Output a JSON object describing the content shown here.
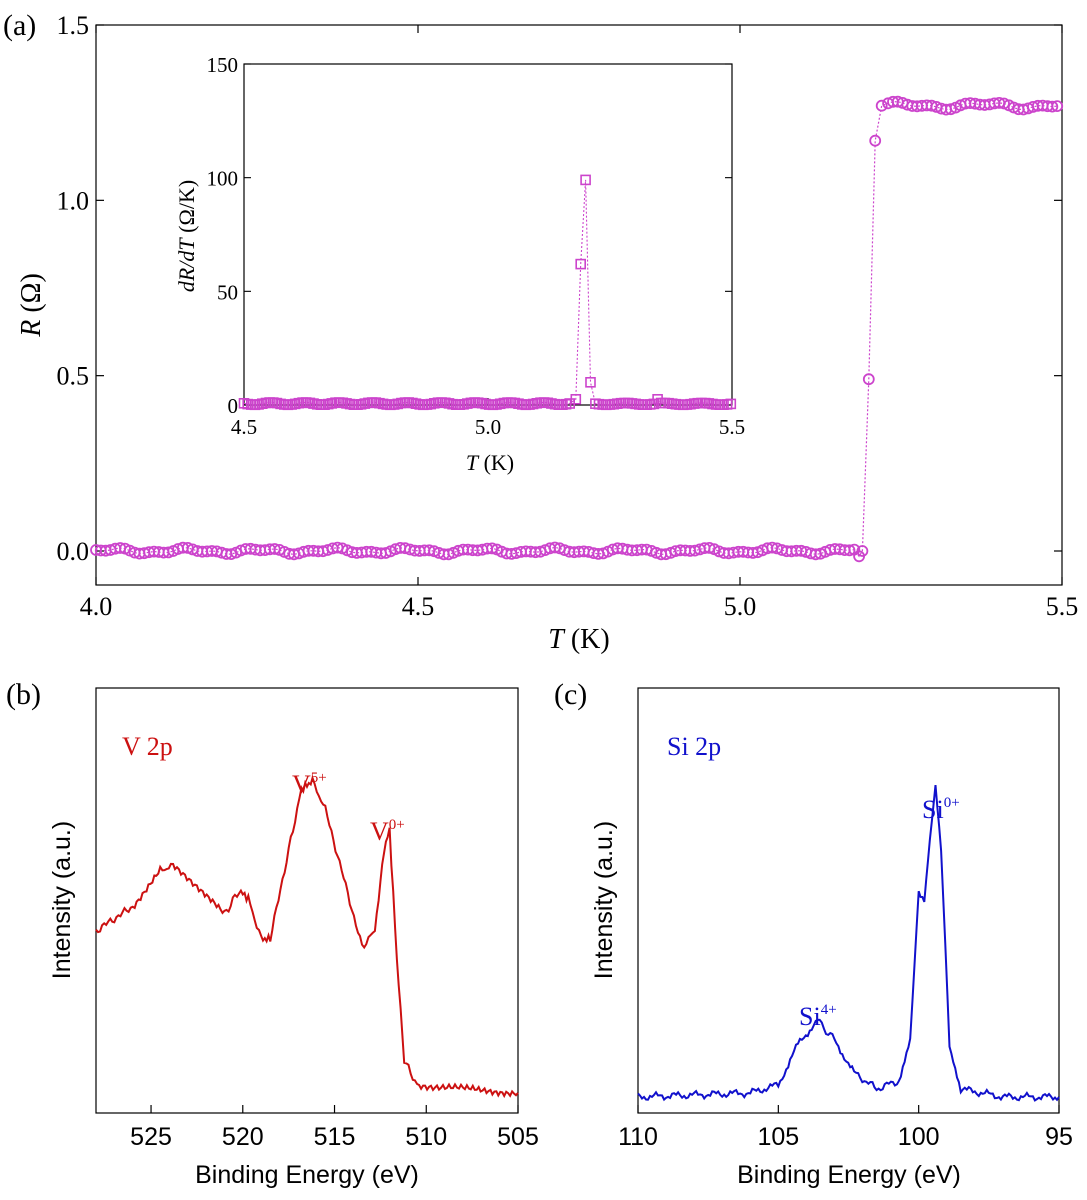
{
  "chart_data": [
    {
      "panel": "(a)",
      "type": "scatter",
      "xlabel": "T (K)",
      "ylabel": "R (Ω)",
      "xlim": [
        4.0,
        5.5
      ],
      "ylim": [
        -0.1,
        1.5
      ],
      "xticks": [
        "4.0",
        "4.5",
        "5.0",
        "5.5"
      ],
      "yticks": [
        "0.0",
        "0.5",
        "1.0",
        "1.5"
      ],
      "color": "#cc44cc",
      "marker": "circle",
      "transition": [
        {
          "x": 5.19,
          "y": 0.0
        },
        {
          "x": 5.2,
          "y": 0.49
        },
        {
          "x": 5.21,
          "y": 1.17
        },
        {
          "x": 5.22,
          "y": 1.27
        }
      ],
      "normal_level": 1.27,
      "super_level": 0.0
    },
    {
      "panel": "(a) inset",
      "type": "scatter",
      "xlabel": "T (K)",
      "ylabel": "dR/dT (Ω/K)",
      "xlim": [
        4.5,
        5.5
      ],
      "ylim": [
        0,
        150
      ],
      "xticks": [
        "4.5",
        "5.0",
        "5.5"
      ],
      "yticks": [
        "0",
        "50",
        "100",
        "150"
      ],
      "color": "#cc44cc",
      "marker": "square",
      "peak": [
        {
          "x": 5.18,
          "y": 2.5
        },
        {
          "x": 5.19,
          "y": 62
        },
        {
          "x": 5.2,
          "y": 99
        },
        {
          "x": 5.21,
          "y": 10
        }
      ],
      "bump": {
        "x": 5.35,
        "y": 2.5
      }
    },
    {
      "panel": "(b)",
      "type": "line",
      "xlabel": "Binding Energy (eV)",
      "ylabel": "Intensity (a.u.)",
      "xlim": [
        528,
        505
      ],
      "xticks": [
        "525",
        "520",
        "515",
        "510",
        "505"
      ],
      "color": "#cc1111",
      "label": "V 2p",
      "annotations": [
        "V5+",
        "V0+"
      ],
      "points": [
        [
          528,
          0.42
        ],
        [
          526,
          0.48
        ],
        [
          524.5,
          0.57
        ],
        [
          523.8,
          0.58
        ],
        [
          522.5,
          0.53
        ],
        [
          521,
          0.46
        ],
        [
          520.2,
          0.52
        ],
        [
          519.7,
          0.5
        ],
        [
          519,
          0.4
        ],
        [
          518.5,
          0.4
        ],
        [
          517.5,
          0.62
        ],
        [
          516.8,
          0.77
        ],
        [
          516.2,
          0.79
        ],
        [
          515.5,
          0.72
        ],
        [
          514.5,
          0.55
        ],
        [
          513.5,
          0.38
        ],
        [
          512.8,
          0.42
        ],
        [
          512.3,
          0.62
        ],
        [
          512.0,
          0.67
        ],
        [
          511.6,
          0.35
        ],
        [
          511.2,
          0.1
        ],
        [
          510.5,
          0.04
        ],
        [
          508,
          0.03
        ],
        [
          505,
          0.02
        ]
      ]
    },
    {
      "panel": "(c)",
      "type": "line",
      "xlabel": "Binding Energy (eV)",
      "ylabel": "Intensity (a.u.)",
      "xlim": [
        110,
        95
      ],
      "xticks": [
        "110",
        "105",
        "100",
        "95"
      ],
      "color": "#1111cc",
      "label": "Si 2p",
      "annotations": [
        "Si4+",
        "Si0+"
      ],
      "points": [
        [
          110,
          0.01
        ],
        [
          106,
          0.02
        ],
        [
          105,
          0.04
        ],
        [
          104.3,
          0.14
        ],
        [
          103.6,
          0.2
        ],
        [
          103,
          0.15
        ],
        [
          102.3,
          0.07
        ],
        [
          101.5,
          0.03
        ],
        [
          100.7,
          0.05
        ],
        [
          100.3,
          0.15
        ],
        [
          100.0,
          0.52
        ],
        [
          99.8,
          0.5
        ],
        [
          99.6,
          0.65
        ],
        [
          99.4,
          0.78
        ],
        [
          99.2,
          0.62
        ],
        [
          98.9,
          0.14
        ],
        [
          98.5,
          0.03
        ],
        [
          97,
          0.01
        ],
        [
          95,
          0.01
        ]
      ]
    }
  ],
  "panel_labels": {
    "a": "(a)",
    "b": "(b)",
    "c": "(c)"
  },
  "annotations": {
    "v2p": "V 2p",
    "v5": "V",
    "v5_sup": "5+",
    "v0": "V",
    "v0_sup": "0+",
    "si2p": "Si 2p",
    "si4": "Si",
    "si4_sup": "4+",
    "si0": "Si",
    "si0_sup": "0+"
  },
  "axis_text": {
    "a_xlabel_italic": "T",
    "a_xlabel_rest": " (K)",
    "a_ylabel_italic": "R",
    "a_ylabel_rest": " (Ω)",
    "inset_xlabel_italic": "T",
    "inset_xlabel_rest": " (K)",
    "inset_ylabel_d1": "d",
    "inset_ylabel_R": "R",
    "inset_ylabel_slash": "/d",
    "inset_ylabel_T": "T",
    "inset_ylabel_rest": " (Ω/K)",
    "b_xlabel": "Binding Energy (eV)",
    "b_ylabel": "Intensity (a.u.)",
    "c_xlabel": "Binding Energy (eV)",
    "c_ylabel": "Intensity (a.u.)"
  },
  "colors": {
    "magenta": "#cc44cc",
    "red": "#cc1111",
    "blue": "#1111cc"
  }
}
